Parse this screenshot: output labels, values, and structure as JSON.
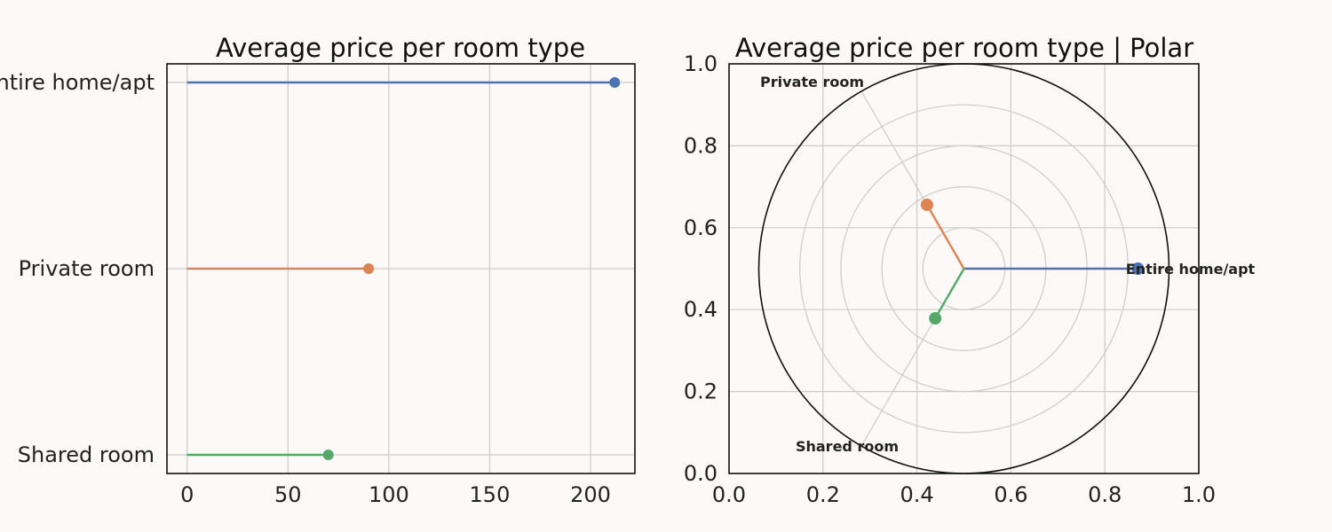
{
  "chart_data": [
    {
      "type": "lollipop",
      "title": "Average price per room type",
      "categories": [
        "Entire home/apt",
        "Private room",
        "Shared room"
      ],
      "values": [
        212,
        90,
        70
      ],
      "colors": [
        "#4c72b0",
        "#dd8452",
        "#55a868"
      ],
      "xlim": [
        -10,
        222
      ],
      "xticks": [
        "0",
        "50",
        "100",
        "150",
        "200"
      ],
      "xtick_values": [
        0,
        50,
        100,
        150,
        200
      ],
      "grid": true
    },
    {
      "type": "polar-lollipop",
      "title": "Average price per room type | Polar",
      "categories": [
        "Entire home/apt",
        "Private room",
        "Shared room"
      ],
      "values": [
        212,
        90,
        70
      ],
      "angles_deg": [
        0,
        120,
        240
      ],
      "colors": [
        "#4c72b0",
        "#dd8452",
        "#55a868"
      ],
      "rmax": 250,
      "ring_values": [
        50,
        100,
        150,
        200
      ],
      "cartesian_ticks": [
        "0.0",
        "0.2",
        "0.4",
        "0.6",
        "0.8",
        "1.0"
      ],
      "cartesian_tick_values": [
        0,
        0.2,
        0.4,
        0.6,
        0.8,
        1.0
      ],
      "grid": true
    }
  ]
}
